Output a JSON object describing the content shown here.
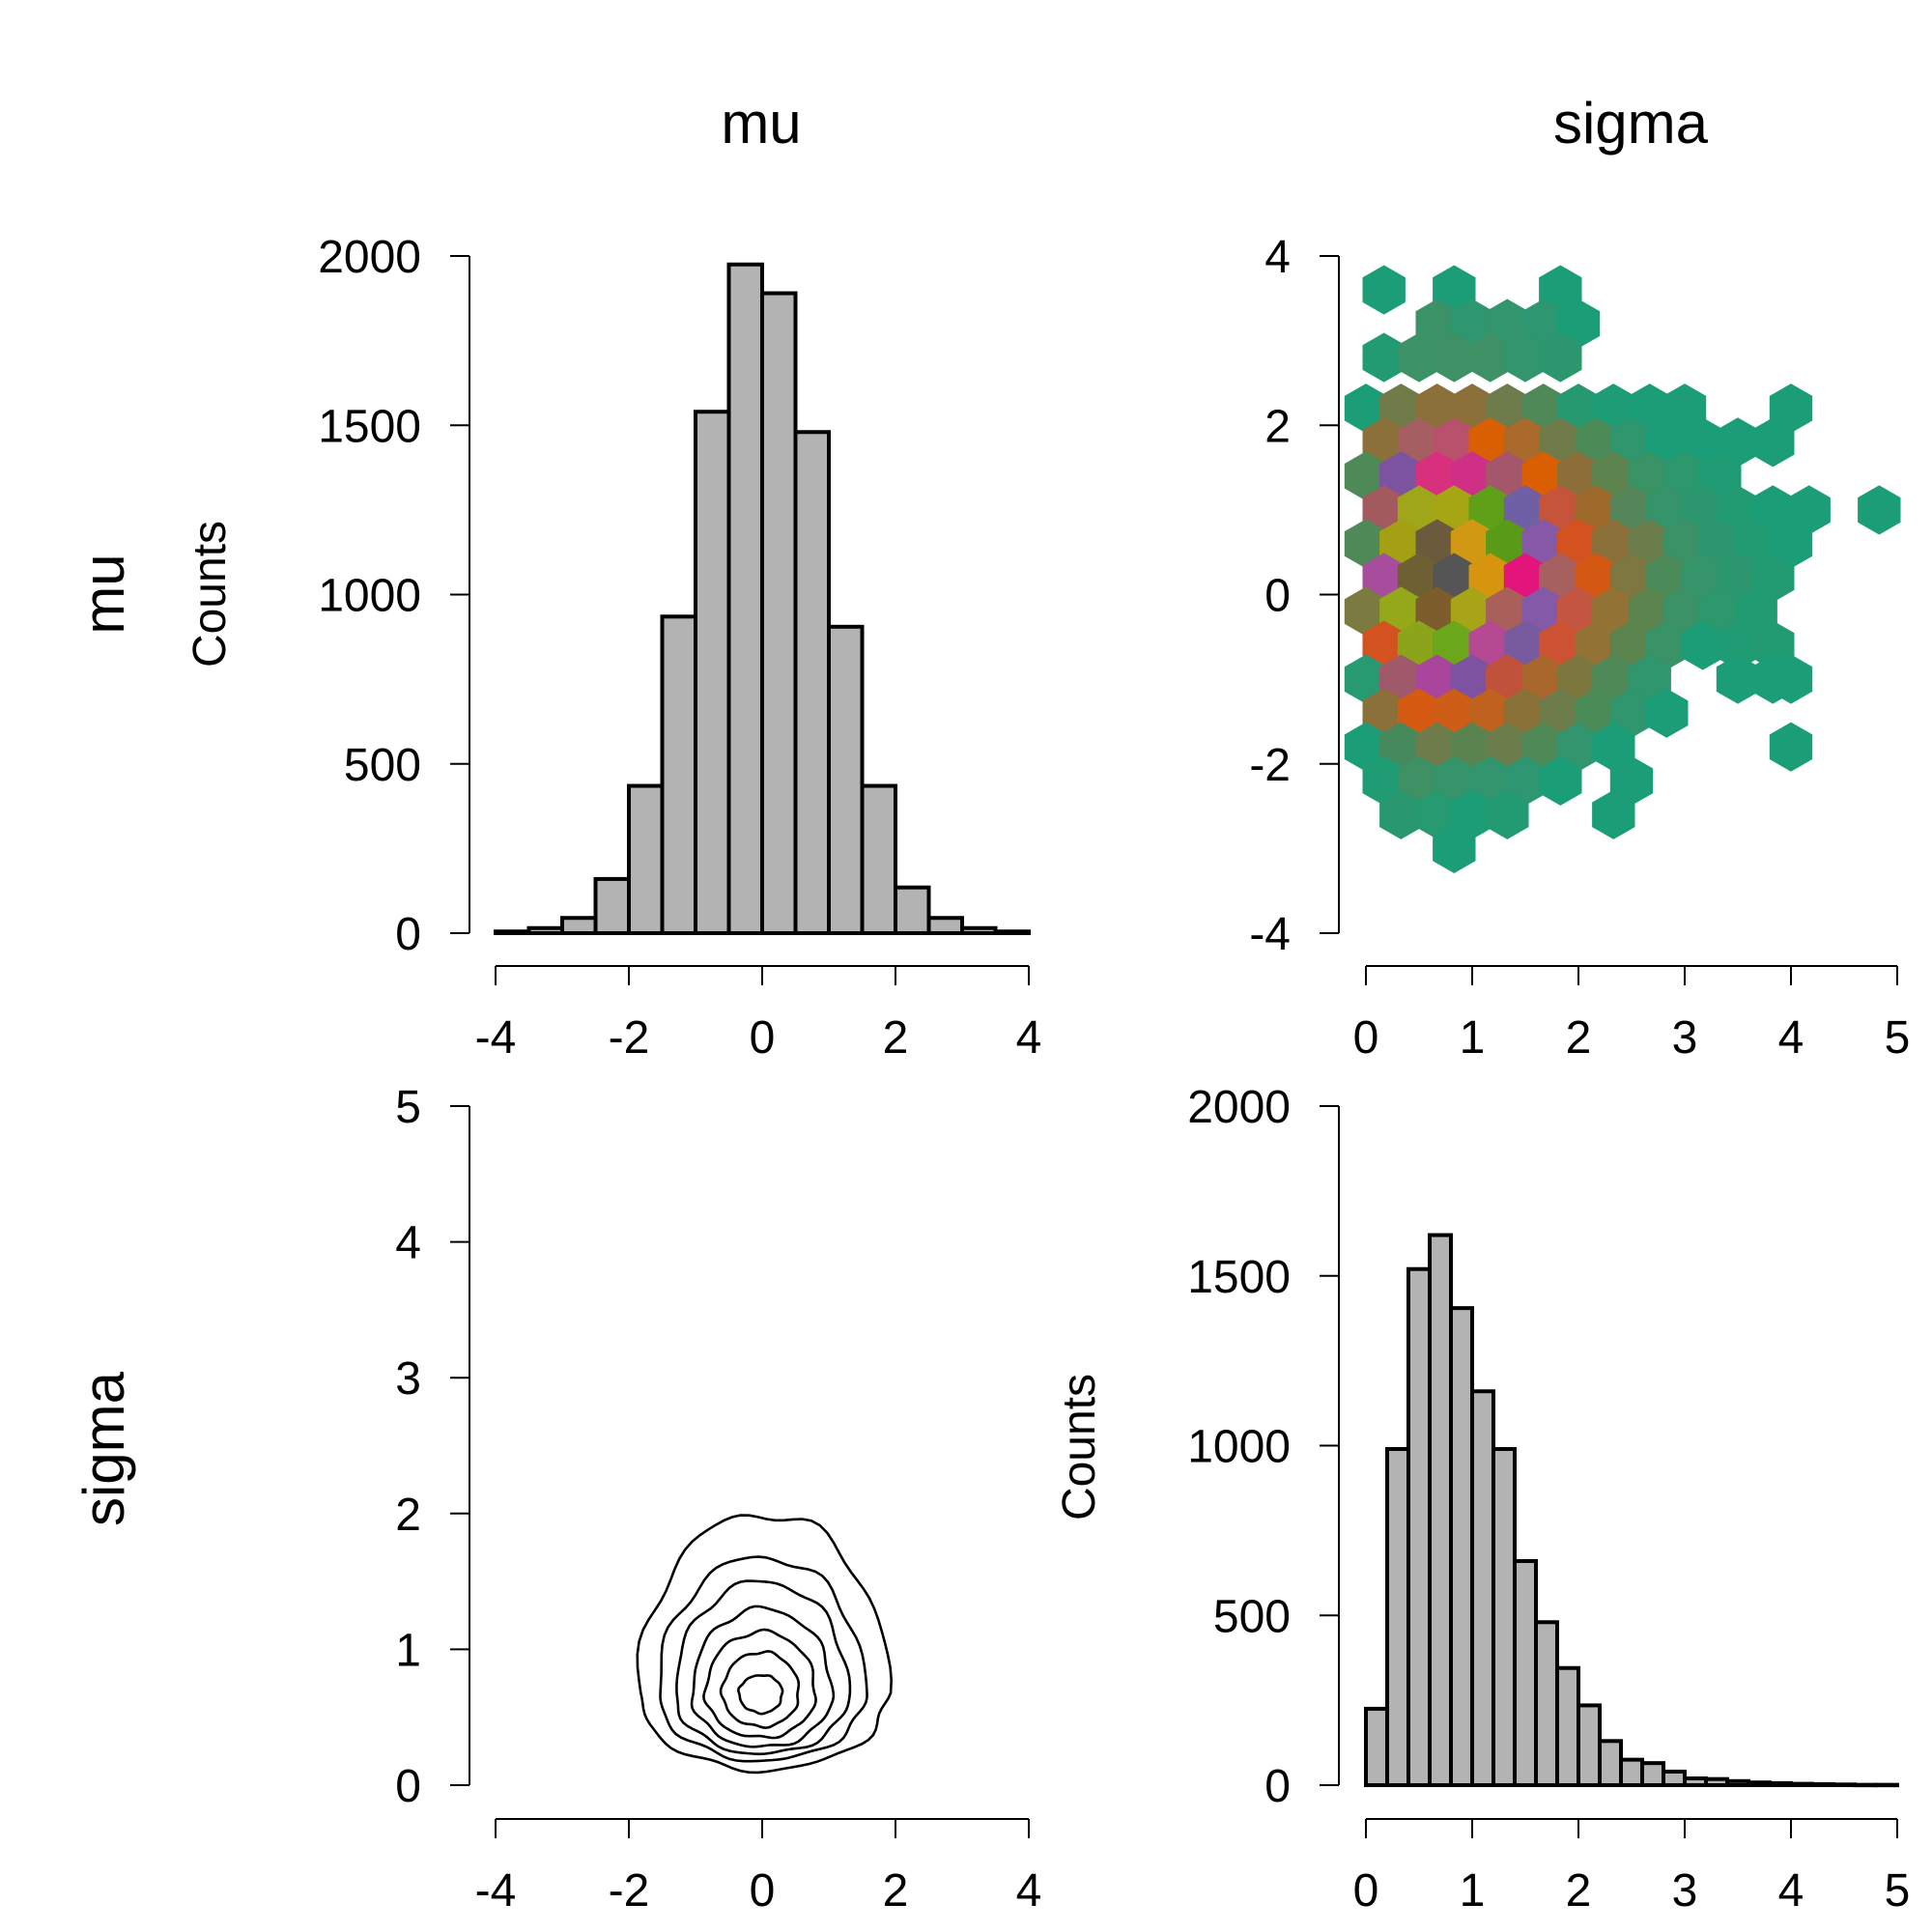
{
  "figure": {
    "column_titles": [
      "mu",
      "sigma"
    ],
    "row_titles": [
      "mu",
      "sigma"
    ]
  },
  "chart_data": [
    {
      "type": "bar",
      "panel": "mu-mu",
      "title": "",
      "xlabel": "",
      "ylabel": "Counts",
      "xlim": [
        -4,
        4
      ],
      "ylim": [
        0,
        2000
      ],
      "xticks": [
        -4,
        -2,
        0,
        2,
        4
      ],
      "yticks": [
        0,
        500,
        1000,
        1500,
        2000
      ],
      "bin_edges": [
        -4,
        -3.5,
        -3,
        -2.5,
        -2,
        -1.5,
        -1,
        -0.5,
        0,
        0.5,
        1,
        1.5,
        2,
        2.5,
        3,
        3.5,
        4
      ],
      "values": [
        5,
        15,
        45,
        160,
        435,
        935,
        1540,
        1975,
        1890,
        1480,
        905,
        435,
        135,
        45,
        15,
        5
      ],
      "bar_color": "#b3b3b3",
      "grid": false
    },
    {
      "type": "heatmap",
      "subtype": "hexbin",
      "panel": "sigma-x-mu-y",
      "title": "",
      "xlabel": "",
      "ylabel": "",
      "xlim": [
        0,
        5
      ],
      "ylim": [
        -4,
        4
      ],
      "xticks": [
        0,
        1,
        2,
        3,
        4,
        5
      ],
      "yticks": [
        -4,
        -2,
        0,
        2,
        4
      ],
      "hexagons": [
        {
          "x": 0.17,
          "y": 3.6,
          "c": "#1b9e77"
        },
        {
          "x": 0.83,
          "y": 3.6,
          "c": "#1b9e77"
        },
        {
          "x": 1.83,
          "y": 3.6,
          "c": "#1b9e77"
        },
        {
          "x": 0.67,
          "y": 3.2,
          "c": "#3b9266"
        },
        {
          "x": 1.0,
          "y": 3.2,
          "c": "#2e9670"
        },
        {
          "x": 1.33,
          "y": 3.2,
          "c": "#33956d"
        },
        {
          "x": 1.67,
          "y": 3.2,
          "c": "#2e9670"
        },
        {
          "x": 2.0,
          "y": 3.2,
          "c": "#1b9e77"
        },
        {
          "x": 0.17,
          "y": 2.8,
          "c": "#229b73"
        },
        {
          "x": 0.5,
          "y": 2.8,
          "c": "#3d9166"
        },
        {
          "x": 0.83,
          "y": 2.8,
          "c": "#3e9165"
        },
        {
          "x": 1.17,
          "y": 2.8,
          "c": "#3e9165"
        },
        {
          "x": 1.5,
          "y": 2.8,
          "c": "#33956d"
        },
        {
          "x": 1.83,
          "y": 2.8,
          "c": "#2c976f"
        },
        {
          "x": 0.0,
          "y": 2.2,
          "c": "#1b9e77"
        },
        {
          "x": 0.33,
          "y": 2.2,
          "c": "#6f7c4a"
        },
        {
          "x": 0.67,
          "y": 2.2,
          "c": "#8b7039"
        },
        {
          "x": 1.0,
          "y": 2.2,
          "c": "#8b7039"
        },
        {
          "x": 1.33,
          "y": 2.2,
          "c": "#6d7c4a"
        },
        {
          "x": 1.67,
          "y": 2.2,
          "c": "#4e8957"
        },
        {
          "x": 2.0,
          "y": 2.2,
          "c": "#27996f"
        },
        {
          "x": 2.33,
          "y": 2.2,
          "c": "#1d9c76"
        },
        {
          "x": 2.67,
          "y": 2.2,
          "c": "#1b9e77"
        },
        {
          "x": 3.0,
          "y": 2.2,
          "c": "#1b9e77"
        },
        {
          "x": 4.0,
          "y": 2.2,
          "c": "#1b9e77"
        },
        {
          "x": 0.17,
          "y": 1.8,
          "c": "#8b7039"
        },
        {
          "x": 0.5,
          "y": 1.8,
          "c": "#a55f63"
        },
        {
          "x": 0.83,
          "y": 1.8,
          "c": "#b8516b"
        },
        {
          "x": 1.17,
          "y": 1.8,
          "c": "#d95f02"
        },
        {
          "x": 1.5,
          "y": 1.8,
          "c": "#a96a2c"
        },
        {
          "x": 1.83,
          "y": 1.8,
          "c": "#6f7c4a"
        },
        {
          "x": 2.17,
          "y": 1.8,
          "c": "#4c8a58"
        },
        {
          "x": 2.5,
          "y": 1.8,
          "c": "#2f966e"
        },
        {
          "x": 2.83,
          "y": 1.8,
          "c": "#1b9e77"
        },
        {
          "x": 3.17,
          "y": 1.8,
          "c": "#1b9e77"
        },
        {
          "x": 3.5,
          "y": 1.8,
          "c": "#1b9e77"
        },
        {
          "x": 3.83,
          "y": 1.8,
          "c": "#1b9e77"
        },
        {
          "x": 0.0,
          "y": 1.4,
          "c": "#4e8957"
        },
        {
          "x": 0.33,
          "y": 1.4,
          "c": "#7b53a0"
        },
        {
          "x": 0.67,
          "y": 1.4,
          "c": "#d9307e"
        },
        {
          "x": 1.0,
          "y": 1.4,
          "c": "#cf2f86"
        },
        {
          "x": 1.33,
          "y": 1.4,
          "c": "#a4566a"
        },
        {
          "x": 1.67,
          "y": 1.4,
          "c": "#d95f02"
        },
        {
          "x": 2.0,
          "y": 1.4,
          "c": "#8d6e39"
        },
        {
          "x": 2.33,
          "y": 1.4,
          "c": "#5d834f"
        },
        {
          "x": 2.67,
          "y": 1.4,
          "c": "#399365"
        },
        {
          "x": 3.0,
          "y": 1.4,
          "c": "#2d976e"
        },
        {
          "x": 3.33,
          "y": 1.4,
          "c": "#1f9c74"
        },
        {
          "x": 0.17,
          "y": 1.0,
          "c": "#a35a5e"
        },
        {
          "x": 0.5,
          "y": 1.0,
          "c": "#9ea619"
        },
        {
          "x": 0.83,
          "y": 1.0,
          "c": "#a6a614"
        },
        {
          "x": 1.17,
          "y": 1.0,
          "c": "#60a019"
        },
        {
          "x": 1.5,
          "y": 1.0,
          "c": "#6f5fa4"
        },
        {
          "x": 1.83,
          "y": 1.0,
          "c": "#c6543b"
        },
        {
          "x": 2.17,
          "y": 1.0,
          "c": "#9d6a2b"
        },
        {
          "x": 2.5,
          "y": 1.0,
          "c": "#55865a"
        },
        {
          "x": 2.83,
          "y": 1.0,
          "c": "#359469"
        },
        {
          "x": 3.17,
          "y": 1.0,
          "c": "#2c976f"
        },
        {
          "x": 3.5,
          "y": 1.0,
          "c": "#229b73"
        },
        {
          "x": 3.83,
          "y": 1.0,
          "c": "#1b9e77"
        },
        {
          "x": 4.17,
          "y": 1.0,
          "c": "#1b9e77"
        },
        {
          "x": 4.83,
          "y": 1.0,
          "c": "#1b9e77"
        },
        {
          "x": 0.0,
          "y": 0.6,
          "c": "#4e8957"
        },
        {
          "x": 0.33,
          "y": 0.6,
          "c": "#a3a014"
        },
        {
          "x": 0.67,
          "y": 0.6,
          "c": "#6b5a3c"
        },
        {
          "x": 1.0,
          "y": 0.6,
          "c": "#d19813"
        },
        {
          "x": 1.33,
          "y": 0.6,
          "c": "#5a9a19"
        },
        {
          "x": 1.67,
          "y": 0.6,
          "c": "#8559a6"
        },
        {
          "x": 2.0,
          "y": 0.6,
          "c": "#d3521f"
        },
        {
          "x": 2.33,
          "y": 0.6,
          "c": "#8c7039"
        },
        {
          "x": 2.67,
          "y": 0.6,
          "c": "#6a7d4b"
        },
        {
          "x": 3.0,
          "y": 0.6,
          "c": "#3b9266"
        },
        {
          "x": 3.33,
          "y": 0.6,
          "c": "#2c976f"
        },
        {
          "x": 3.67,
          "y": 0.6,
          "c": "#229b73"
        },
        {
          "x": 4.0,
          "y": 0.6,
          "c": "#1b9e77"
        },
        {
          "x": 0.17,
          "y": 0.2,
          "c": "#a84d9d"
        },
        {
          "x": 0.5,
          "y": 0.2,
          "c": "#6f6033"
        },
        {
          "x": 0.83,
          "y": 0.2,
          "c": "#555555"
        },
        {
          "x": 1.17,
          "y": 0.2,
          "c": "#d6940f"
        },
        {
          "x": 1.5,
          "y": 0.2,
          "c": "#e3157c"
        },
        {
          "x": 1.83,
          "y": 0.2,
          "c": "#a66060"
        },
        {
          "x": 2.17,
          "y": 0.2,
          "c": "#d35913"
        },
        {
          "x": 2.5,
          "y": 0.2,
          "c": "#7e7741"
        },
        {
          "x": 2.83,
          "y": 0.2,
          "c": "#4b8a59"
        },
        {
          "x": 3.17,
          "y": 0.2,
          "c": "#36946b"
        },
        {
          "x": 3.5,
          "y": 0.2,
          "c": "#2c976f"
        },
        {
          "x": 3.83,
          "y": 0.2,
          "c": "#229b73"
        },
        {
          "x": 0.0,
          "y": -0.2,
          "c": "#7b7a40"
        },
        {
          "x": 0.33,
          "y": -0.2,
          "c": "#94a81a"
        },
        {
          "x": 0.67,
          "y": -0.2,
          "c": "#7d5d2b"
        },
        {
          "x": 1.0,
          "y": -0.2,
          "c": "#a7a517"
        },
        {
          "x": 1.33,
          "y": -0.2,
          "c": "#a95f5a"
        },
        {
          "x": 1.67,
          "y": -0.2,
          "c": "#8459a7"
        },
        {
          "x": 2.0,
          "y": -0.2,
          "c": "#c45540"
        },
        {
          "x": 2.33,
          "y": -0.2,
          "c": "#937236"
        },
        {
          "x": 2.67,
          "y": -0.2,
          "c": "#5b844f"
        },
        {
          "x": 3.0,
          "y": -0.2,
          "c": "#3b9266"
        },
        {
          "x": 3.33,
          "y": -0.2,
          "c": "#2d976e"
        },
        {
          "x": 3.67,
          "y": -0.2,
          "c": "#229b73"
        },
        {
          "x": 0.17,
          "y": -0.6,
          "c": "#d3521f"
        },
        {
          "x": 0.5,
          "y": -0.6,
          "c": "#8aa51a"
        },
        {
          "x": 0.83,
          "y": -0.6,
          "c": "#6aa71a"
        },
        {
          "x": 1.17,
          "y": -0.6,
          "c": "#b54a92"
        },
        {
          "x": 1.5,
          "y": -0.6,
          "c": "#785a9f"
        },
        {
          "x": 1.83,
          "y": -0.6,
          "c": "#cc5233"
        },
        {
          "x": 2.17,
          "y": -0.6,
          "c": "#937236"
        },
        {
          "x": 2.5,
          "y": -0.6,
          "c": "#5b844f"
        },
        {
          "x": 2.83,
          "y": -0.6,
          "c": "#3a9366"
        },
        {
          "x": 3.17,
          "y": -0.6,
          "c": "#1b9e77"
        },
        {
          "x": 3.5,
          "y": -0.6,
          "c": "#1f9c74"
        },
        {
          "x": 3.83,
          "y": -0.6,
          "c": "#229b73"
        },
        {
          "x": 0.0,
          "y": -1.0,
          "c": "#279a71"
        },
        {
          "x": 0.33,
          "y": -1.0,
          "c": "#a0586b"
        },
        {
          "x": 0.67,
          "y": -1.0,
          "c": "#a9459c"
        },
        {
          "x": 1.0,
          "y": -1.0,
          "c": "#7c52a1"
        },
        {
          "x": 1.33,
          "y": -1.0,
          "c": "#c0523c"
        },
        {
          "x": 1.67,
          "y": -1.0,
          "c": "#a9672c"
        },
        {
          "x": 2.0,
          "y": -1.0,
          "c": "#7c773f"
        },
        {
          "x": 2.33,
          "y": -1.0,
          "c": "#4e8957"
        },
        {
          "x": 2.67,
          "y": -1.0,
          "c": "#2f966e"
        },
        {
          "x": 3.5,
          "y": -1.0,
          "c": "#1b9e77"
        },
        {
          "x": 3.83,
          "y": -1.0,
          "c": "#1b9e77"
        },
        {
          "x": 4.0,
          "y": -1.0,
          "c": "#1b9e77"
        },
        {
          "x": 0.17,
          "y": -1.4,
          "c": "#8b7039"
        },
        {
          "x": 0.5,
          "y": -1.4,
          "c": "#d65a12"
        },
        {
          "x": 0.83,
          "y": -1.4,
          "c": "#cd5d17"
        },
        {
          "x": 1.17,
          "y": -1.4,
          "c": "#bf621e"
        },
        {
          "x": 1.5,
          "y": -1.4,
          "c": "#8a7138"
        },
        {
          "x": 1.83,
          "y": -1.4,
          "c": "#6d7c4a"
        },
        {
          "x": 2.17,
          "y": -1.4,
          "c": "#4a8b58"
        },
        {
          "x": 2.5,
          "y": -1.4,
          "c": "#2f966e"
        },
        {
          "x": 2.83,
          "y": -1.4,
          "c": "#1b9e77"
        },
        {
          "x": 0.0,
          "y": -1.8,
          "c": "#1b9e77"
        },
        {
          "x": 0.33,
          "y": -1.8,
          "c": "#46895c"
        },
        {
          "x": 0.67,
          "y": -1.8,
          "c": "#6d7c4a"
        },
        {
          "x": 1.0,
          "y": -1.8,
          "c": "#5a844f"
        },
        {
          "x": 1.33,
          "y": -1.8,
          "c": "#6a7d4b"
        },
        {
          "x": 1.67,
          "y": -1.8,
          "c": "#4e8957"
        },
        {
          "x": 2.0,
          "y": -1.8,
          "c": "#33956d"
        },
        {
          "x": 2.33,
          "y": -1.8,
          "c": "#1b9e77"
        },
        {
          "x": 4.0,
          "y": -1.8,
          "c": "#1b9e77"
        },
        {
          "x": 0.17,
          "y": -2.2,
          "c": "#1f9c74"
        },
        {
          "x": 0.5,
          "y": -2.2,
          "c": "#3e9165"
        },
        {
          "x": 0.83,
          "y": -2.2,
          "c": "#359469"
        },
        {
          "x": 1.17,
          "y": -2.2,
          "c": "#33956d"
        },
        {
          "x": 1.5,
          "y": -2.2,
          "c": "#2e9670"
        },
        {
          "x": 1.83,
          "y": -2.2,
          "c": "#1b9e77"
        },
        {
          "x": 2.5,
          "y": -2.2,
          "c": "#1b9e77"
        },
        {
          "x": 0.33,
          "y": -2.6,
          "c": "#2a986f"
        },
        {
          "x": 0.67,
          "y": -2.6,
          "c": "#279a71"
        },
        {
          "x": 1.0,
          "y": -2.6,
          "c": "#1b9e77"
        },
        {
          "x": 1.33,
          "y": -2.6,
          "c": "#229b73"
        },
        {
          "x": 2.33,
          "y": -2.6,
          "c": "#1b9e77"
        },
        {
          "x": 0.83,
          "y": -3.0,
          "c": "#1b9e77"
        }
      ],
      "grid": false
    },
    {
      "type": "contour",
      "panel": "mu-x-sigma-y",
      "title": "",
      "xlabel": "",
      "ylabel": "",
      "xlim": [
        -4,
        4
      ],
      "ylim": [
        0,
        5
      ],
      "xticks": [
        -4,
        -2,
        0,
        2,
        4
      ],
      "yticks": [
        0,
        1,
        2,
        3,
        4,
        5
      ],
      "center": [
        0.0,
        0.68
      ],
      "levels": [
        {
          "rx_left": 1.85,
          "rx_right": 1.9,
          "ry_up": 1.32,
          "ry_down": 0.57
        },
        {
          "rx_left": 1.55,
          "rx_right": 1.55,
          "ry_up": 1.0,
          "ry_down": 0.5
        },
        {
          "rx_left": 1.3,
          "rx_right": 1.3,
          "ry_up": 0.82,
          "ry_down": 0.45
        },
        {
          "rx_left": 1.05,
          "rx_right": 1.05,
          "ry_up": 0.62,
          "ry_down": 0.4
        },
        {
          "rx_left": 0.85,
          "rx_right": 0.8,
          "ry_up": 0.45,
          "ry_down": 0.33
        },
        {
          "rx_left": 0.6,
          "rx_right": 0.55,
          "ry_up": 0.3,
          "ry_down": 0.25
        },
        {
          "rx_left": 0.35,
          "rx_right": 0.3,
          "ry_up": 0.13,
          "ry_down": 0.15
        }
      ],
      "grid": false
    },
    {
      "type": "bar",
      "panel": "sigma-sigma",
      "title": "",
      "xlabel": "",
      "ylabel": "Counts",
      "xlim": [
        0,
        5
      ],
      "ylim": [
        0,
        2000
      ],
      "xticks": [
        0,
        1,
        2,
        3,
        4,
        5
      ],
      "yticks": [
        0,
        500,
        1000,
        1500,
        2000
      ],
      "bin_edges": [
        0,
        0.2,
        0.4,
        0.6,
        0.8,
        1.0,
        1.2,
        1.4,
        1.6,
        1.8,
        2.0,
        2.2,
        2.4,
        2.6,
        2.8,
        3.0,
        3.2,
        3.4,
        3.6,
        3.8,
        4.0,
        4.2,
        4.4,
        4.6,
        4.8,
        5.0
      ],
      "values": [
        225,
        990,
        1520,
        1620,
        1405,
        1160,
        990,
        660,
        480,
        345,
        235,
        130,
        75,
        65,
        40,
        20,
        18,
        12,
        8,
        6,
        4,
        3,
        2,
        1,
        1
      ],
      "bar_color": "#b3b3b3",
      "grid": false
    }
  ]
}
